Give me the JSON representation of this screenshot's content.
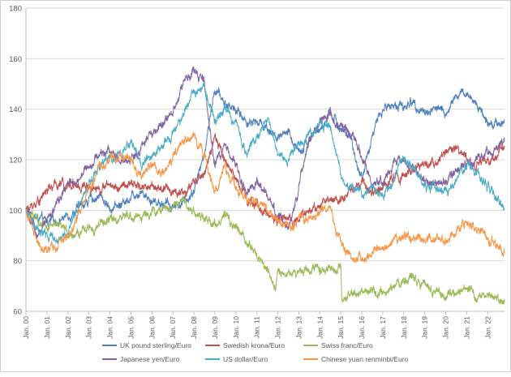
{
  "chart_data": {
    "type": "line",
    "title": "",
    "xlabel": "",
    "ylabel": "",
    "ylim": [
      60,
      180
    ],
    "y_ticks": [
      60,
      80,
      100,
      120,
      140,
      160,
      180
    ],
    "x_tick_labels": [
      "Jan. 00",
      "Jan. 01",
      "Jan. 02",
      "Jan. 03",
      "Jan. 04",
      "Jan. 05",
      "Jan. 06",
      "Jan. 07",
      "Jan. 08",
      "Jan. 09",
      "Jan. 10",
      "Jan. 11",
      "Jan. 12",
      "Jan. 13",
      "Jan. 14",
      "Jan. 15",
      "Jan. 16",
      "Jan. 17",
      "Jan. 18",
      "Jan. 19",
      "Jan. 20",
      "Jan. 21",
      "Jan. 22"
    ],
    "xlim": [
      2000.0,
      2022.8
    ],
    "grid": "horizontal",
    "legend_position": "bottom",
    "series": [
      {
        "name": "UK pound sterling/Euro",
        "color": "#4f81bd",
        "x": [
          2000,
          2000.5,
          2001,
          2001.5,
          2002,
          2002.5,
          2003,
          2003.5,
          2004,
          2004.5,
          2005,
          2005.5,
          2006,
          2006.5,
          2007,
          2007.5,
          2008,
          2008.5,
          2009,
          2009.5,
          2010,
          2010.5,
          2011,
          2011.5,
          2012,
          2012.5,
          2013,
          2013.5,
          2014,
          2014.5,
          2015,
          2015.5,
          2016,
          2016.5,
          2017,
          2017.5,
          2018,
          2018.5,
          2019,
          2019.5,
          2020,
          2020.5,
          2021,
          2021.5,
          2022,
          2022.5,
          2022.8
        ],
        "values": [
          100,
          97,
          95,
          96,
          98,
          101,
          104,
          106,
          101,
          102,
          106,
          108,
          104,
          103,
          102,
          103,
          108,
          122,
          148,
          142,
          140,
          135,
          135,
          133,
          128,
          130,
          124,
          128,
          132,
          138,
          133,
          127,
          112,
          130,
          140,
          142,
          141,
          143,
          138,
          141,
          138,
          145,
          146,
          142,
          135,
          134,
          136
        ]
      },
      {
        "name": "Swedish krona/Euro",
        "color": "#c0504d",
        "x": [
          2000,
          2000.5,
          2001,
          2001.5,
          2002,
          2002.5,
          2003,
          2003.5,
          2004,
          2004.5,
          2005,
          2005.5,
          2006,
          2006.5,
          2007,
          2007.5,
          2008,
          2008.5,
          2009,
          2009.5,
          2010,
          2010.5,
          2011,
          2011.5,
          2012,
          2012.5,
          2013,
          2013.5,
          2014,
          2014.5,
          2015,
          2015.5,
          2016,
          2016.5,
          2017,
          2017.5,
          2018,
          2018.5,
          2019,
          2019.5,
          2020,
          2020.5,
          2021,
          2021.5,
          2022,
          2022.5,
          2022.8
        ],
        "values": [
          100,
          103,
          108,
          110,
          111,
          109,
          110,
          109,
          110,
          109,
          110,
          109,
          110,
          108,
          108,
          107,
          110,
          115,
          128,
          120,
          112,
          106,
          102,
          98,
          97,
          96,
          97,
          100,
          102,
          104,
          105,
          108,
          110,
          107,
          109,
          113,
          114,
          115,
          118,
          120,
          122,
          124,
          120,
          118,
          120,
          122,
          125
        ]
      },
      {
        "name": "Swiss franc/Euro",
        "color": "#9bbb59",
        "x": [
          2000,
          2000.5,
          2001,
          2001.5,
          2002,
          2002.5,
          2003,
          2003.5,
          2004,
          2004.5,
          2005,
          2005.5,
          2006,
          2006.5,
          2007,
          2007.5,
          2008,
          2008.5,
          2009,
          2009.5,
          2010,
          2010.5,
          2011,
          2011.5,
          2011.9,
          2012,
          2012.5,
          2013,
          2013.5,
          2014,
          2014.5,
          2015.0,
          2015.05,
          2015.5,
          2016,
          2016.5,
          2017,
          2017.5,
          2018,
          2018.5,
          2019,
          2019.5,
          2020,
          2020.5,
          2021,
          2021.5,
          2022,
          2022.5,
          2022.8
        ],
        "values": [
          100,
          96,
          95,
          93,
          91,
          91,
          92,
          94,
          96,
          97,
          97,
          98,
          99,
          100,
          102,
          103,
          100,
          96,
          95,
          97,
          93,
          88,
          82,
          77,
          67,
          76,
          75,
          76,
          77,
          77,
          76,
          76,
          62,
          66,
          68,
          67,
          66,
          70,
          72,
          74,
          71,
          68,
          66,
          67,
          68,
          67,
          66,
          64,
          64
        ]
      },
      {
        "name": "Japanese yen/Euro",
        "color": "#8064a2",
        "x": [
          2000,
          2000.5,
          2001,
          2001.5,
          2002,
          2002.5,
          2003,
          2003.5,
          2004,
          2004.5,
          2005,
          2005.5,
          2006,
          2006.5,
          2007,
          2007.5,
          2008,
          2008.5,
          2009,
          2009.5,
          2010,
          2010.5,
          2011,
          2011.5,
          2012,
          2012.5,
          2013,
          2013.5,
          2014,
          2014.5,
          2015,
          2015.5,
          2016,
          2016.5,
          2017,
          2017.5,
          2018,
          2018.5,
          2019,
          2019.5,
          2020,
          2020.5,
          2021,
          2021.5,
          2022,
          2022.5,
          2022.8
        ],
        "values": [
          100,
          90,
          95,
          103,
          110,
          112,
          118,
          122,
          124,
          118,
          120,
          125,
          130,
          133,
          140,
          150,
          155,
          150,
          118,
          125,
          118,
          108,
          110,
          105,
          98,
          92,
          110,
          128,
          135,
          138,
          133,
          130,
          122,
          110,
          112,
          118,
          120,
          116,
          112,
          110,
          112,
          115,
          118,
          120,
          122,
          126,
          128
        ]
      },
      {
        "name": "US dollar/Euro",
        "color": "#4bacc6",
        "x": [
          2000,
          2000.5,
          2001,
          2001.5,
          2002,
          2002.5,
          2003,
          2003.5,
          2004,
          2004.5,
          2005,
          2005.5,
          2006,
          2006.5,
          2007,
          2007.5,
          2008,
          2008.5,
          2009,
          2009.5,
          2010,
          2010.5,
          2011,
          2011.5,
          2012,
          2012.5,
          2013,
          2013.5,
          2014,
          2014.5,
          2015,
          2015.5,
          2016,
          2016.5,
          2017,
          2017.5,
          2018,
          2018.5,
          2019,
          2019.5,
          2020,
          2020.5,
          2021,
          2021.5,
          2022,
          2022.5,
          2022.8
        ],
        "values": [
          100,
          92,
          90,
          88,
          92,
          100,
          110,
          118,
          120,
          122,
          128,
          118,
          122,
          125,
          130,
          138,
          147,
          150,
          135,
          140,
          135,
          122,
          130,
          135,
          125,
          120,
          126,
          130,
          135,
          132,
          115,
          108,
          107,
          109,
          106,
          112,
          120,
          117,
          110,
          108,
          106,
          112,
          118,
          114,
          110,
          104,
          100
        ]
      },
      {
        "name": "Chinese yuan renminbi/Euro",
        "color": "#f79646",
        "x": [
          2000,
          2000.5,
          2001,
          2001.5,
          2002,
          2002.5,
          2003,
          2003.5,
          2004,
          2004.5,
          2005,
          2005.5,
          2006,
          2006.5,
          2007,
          2007.5,
          2008,
          2008.5,
          2009,
          2009.5,
          2010,
          2010.5,
          2011,
          2011.5,
          2012,
          2012.5,
          2013,
          2013.5,
          2014,
          2014.5,
          2015,
          2015.5,
          2016,
          2016.5,
          2017,
          2017.5,
          2018,
          2018.5,
          2019,
          2019.5,
          2020,
          2020.5,
          2021,
          2021.5,
          2022,
          2022.5,
          2022.8
        ],
        "values": [
          100,
          88,
          83,
          86,
          90,
          98,
          110,
          116,
          120,
          122,
          120,
          114,
          118,
          116,
          120,
          126,
          128,
          122,
          108,
          115,
          110,
          103,
          104,
          100,
          96,
          93,
          95,
          97,
          99,
          101,
          86,
          80,
          81,
          83,
          85,
          88,
          90,
          89,
          88,
          90,
          88,
          92,
          95,
          92,
          90,
          86,
          83
        ]
      }
    ]
  }
}
